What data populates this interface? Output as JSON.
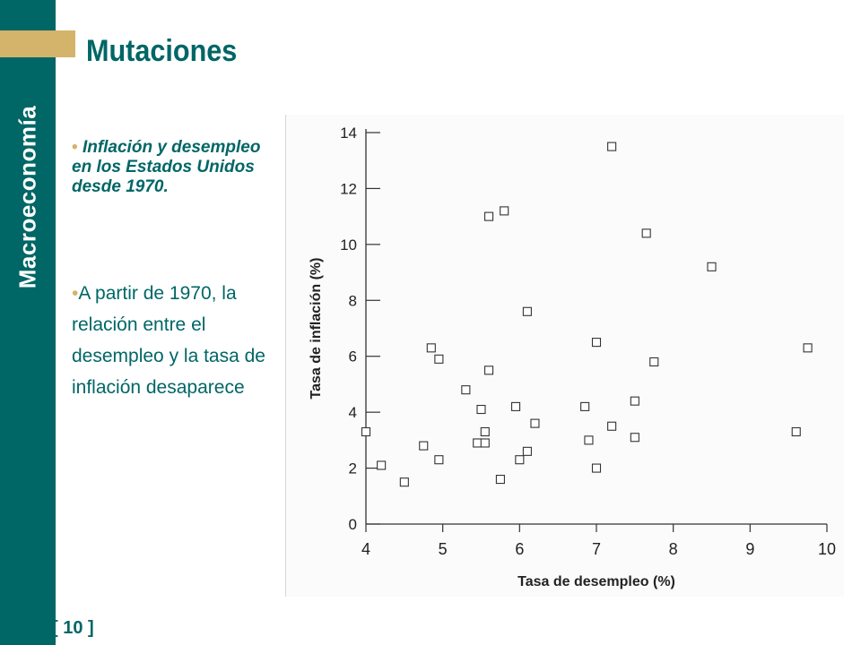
{
  "slide": {
    "sidebar_title": "Macroeconomía",
    "title": "Mutaciones",
    "bullet1_mark": "•",
    "bullet1": "Inflación y desempleo en los Estados Unidos desde 1970.",
    "bullet2_mark": "•",
    "bullet2": "A partir de 1970, la relación entre el desempleo y la tasa de inflación desaparece",
    "page_number": "[ 10 ]"
  },
  "colors": {
    "sidebar": "#006666",
    "accent": "#d4b36a",
    "title": "#006666"
  },
  "chart_data": {
    "type": "scatter",
    "title": "",
    "xlabel": "Tasa de desempleo (%)",
    "ylabel": "Tasa de inflación (%)",
    "xlim": [
      4,
      10
    ],
    "ylim": [
      0,
      14
    ],
    "xticks": [
      4,
      5,
      6,
      7,
      8,
      9,
      10
    ],
    "yticks": [
      0,
      2,
      4,
      6,
      8,
      10,
      12,
      14
    ],
    "grid": false,
    "marker": "hollow-square",
    "points": [
      [
        4.0,
        3.3
      ],
      [
        4.2,
        2.1
      ],
      [
        4.5,
        1.5
      ],
      [
        4.75,
        2.8
      ],
      [
        4.85,
        6.3
      ],
      [
        4.95,
        5.9
      ],
      [
        4.95,
        2.3
      ],
      [
        5.3,
        4.8
      ],
      [
        5.45,
        2.9
      ],
      [
        5.5,
        4.1
      ],
      [
        5.55,
        3.3
      ],
      [
        5.55,
        2.9
      ],
      [
        5.6,
        5.5
      ],
      [
        5.6,
        11.0
      ],
      [
        5.8,
        11.2
      ],
      [
        5.75,
        1.6
      ],
      [
        5.95,
        4.2
      ],
      [
        6.0,
        2.3
      ],
      [
        6.1,
        7.6
      ],
      [
        6.1,
        2.6
      ],
      [
        6.2,
        3.6
      ],
      [
        6.85,
        4.2
      ],
      [
        6.9,
        3.0
      ],
      [
        7.0,
        6.5
      ],
      [
        7.0,
        2.0
      ],
      [
        7.2,
        13.5
      ],
      [
        7.2,
        3.5
      ],
      [
        7.5,
        4.4
      ],
      [
        7.5,
        3.1
      ],
      [
        7.65,
        10.4
      ],
      [
        7.75,
        5.8
      ],
      [
        8.5,
        9.2
      ],
      [
        9.6,
        3.3
      ],
      [
        9.75,
        6.3
      ]
    ]
  }
}
